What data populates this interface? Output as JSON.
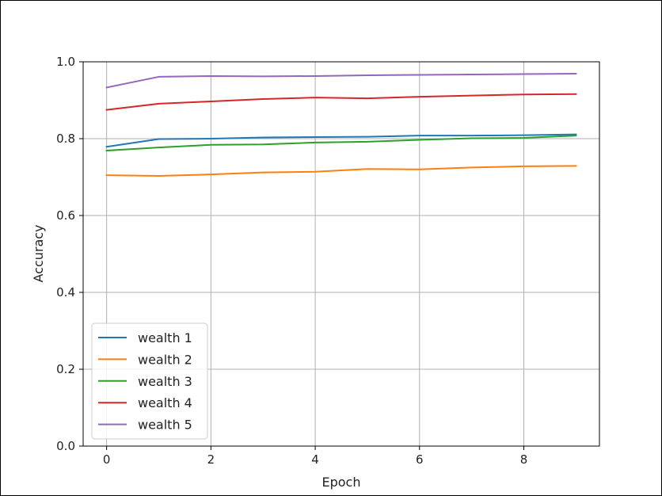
{
  "chart_data": {
    "type": "line",
    "title": "",
    "xlabel": "Epoch",
    "ylabel": "Accuracy",
    "xlim": [
      -0.45,
      9.45
    ],
    "ylim": [
      0.0,
      1.0
    ],
    "x_ticks": [
      0,
      2,
      4,
      6,
      8
    ],
    "y_ticks": [
      0.0,
      0.2,
      0.4,
      0.6,
      0.8,
      1.0
    ],
    "x_tick_labels": [
      "0",
      "2",
      "4",
      "6",
      "8"
    ],
    "y_tick_labels": [
      "0.0",
      "0.2",
      "0.4",
      "0.6",
      "0.8",
      "1.0"
    ],
    "grid": true,
    "legend_position": "lower-left",
    "x": [
      0,
      1,
      2,
      3,
      4,
      5,
      6,
      7,
      8,
      9
    ],
    "series": [
      {
        "name": "wealth 1",
        "color": "#1f77b4",
        "values": [
          0.779,
          0.799,
          0.8,
          0.803,
          0.804,
          0.805,
          0.808,
          0.808,
          0.809,
          0.811
        ]
      },
      {
        "name": "wealth 2",
        "color": "#ff7f0e",
        "values": [
          0.705,
          0.703,
          0.707,
          0.712,
          0.714,
          0.721,
          0.72,
          0.725,
          0.728,
          0.729
        ]
      },
      {
        "name": "wealth 3",
        "color": "#2ca02c",
        "values": [
          0.769,
          0.777,
          0.784,
          0.785,
          0.79,
          0.792,
          0.797,
          0.801,
          0.802,
          0.808
        ]
      },
      {
        "name": "wealth 4",
        "color": "#d62728",
        "values": [
          0.875,
          0.891,
          0.897,
          0.903,
          0.907,
          0.905,
          0.909,
          0.912,
          0.915,
          0.916
        ]
      },
      {
        "name": "wealth 5",
        "color": "#9467bd",
        "values": [
          0.933,
          0.961,
          0.963,
          0.962,
          0.963,
          0.965,
          0.966,
          0.967,
          0.968,
          0.969
        ]
      }
    ]
  }
}
